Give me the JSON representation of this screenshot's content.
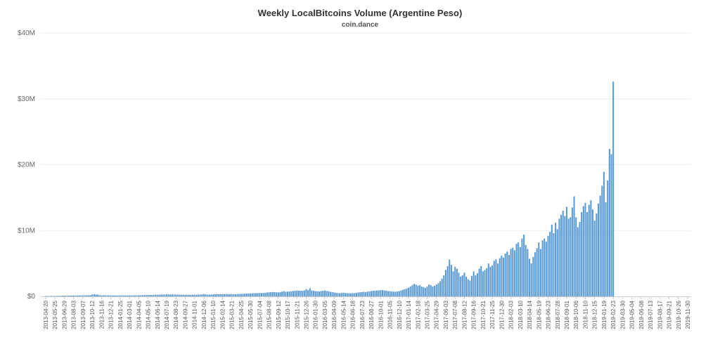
{
  "chart_data": {
    "type": "bar",
    "title": "Weekly LocalBitcoins Volume (Argentine Peso)",
    "subtitle": "coin.dance",
    "xlabel": "",
    "ylabel": "",
    "ylim": [
      0,
      40000000
    ],
    "y_ticks": [
      {
        "value": 0,
        "label": "$0"
      },
      {
        "value": 10000000,
        "label": "$10M"
      },
      {
        "value": 20000000,
        "label": "$20M"
      },
      {
        "value": 30000000,
        "label": "$30M"
      },
      {
        "value": 40000000,
        "label": "$40M"
      }
    ],
    "grid": true,
    "legend": "none",
    "color": "#5b9bd5",
    "first_week": "2013-04-20",
    "tick_labels": [
      "2013-04-20",
      "2013-05-25",
      "2013-06-29",
      "2013-08-03",
      "2013-09-07",
      "2013-10-12",
      "2013-11-16",
      "2013-12-21",
      "2014-01-25",
      "2014-03-01",
      "2014-04-05",
      "2014-05-10",
      "2014-06-14",
      "2014-07-19",
      "2014-08-23",
      "2014-09-27",
      "2014-11-01",
      "2014-12-06",
      "2015-01-10",
      "2015-02-14",
      "2015-03-21",
      "2015-04-25",
      "2015-05-30",
      "2015-07-04",
      "2015-08-08",
      "2015-09-12",
      "2015-10-17",
      "2015-11-21",
      "2015-12-26",
      "2016-01-30",
      "2016-03-05",
      "2016-04-09",
      "2016-05-14",
      "2016-06-18",
      "2016-07-23",
      "2016-08-27",
      "2016-10-01",
      "2016-11-05",
      "2016-12-10",
      "2017-01-14",
      "2017-02-18",
      "2017-03-25",
      "2017-04-29",
      "2017-06-03",
      "2017-07-08",
      "2017-08-12",
      "2017-09-16",
      "2017-10-21",
      "2017-11-25",
      "2017-12-30",
      "2018-02-03",
      "2018-03-10",
      "2018-04-14",
      "2018-05-19",
      "2018-06-23",
      "2018-07-28",
      "2018-09-01",
      "2018-10-06",
      "2018-11-10",
      "2018-12-15",
      "2019-01-19",
      "2019-02-23",
      "2019-03-30",
      "2019-05-04",
      "2019-06-08",
      "2019-07-13",
      "2019-08-17",
      "2019-09-21",
      "2019-10-26",
      "2019-11-30"
    ],
    "values": [
      50000,
      60000,
      60000,
      70000,
      60000,
      70000,
      80000,
      90000,
      80000,
      100000,
      100000,
      90000,
      110000,
      110000,
      120000,
      130000,
      120000,
      140000,
      150000,
      140000,
      160000,
      170000,
      160000,
      180000,
      190000,
      280000,
      320000,
      300000,
      260000,
      180000,
      160000,
      170000,
      180000,
      150000,
      140000,
      150000,
      150000,
      140000,
      140000,
      130000,
      140000,
      150000,
      140000,
      130000,
      140000,
      150000,
      140000,
      150000,
      160000,
      160000,
      170000,
      170000,
      180000,
      200000,
      190000,
      200000,
      210000,
      220000,
      230000,
      250000,
      240000,
      260000,
      260000,
      270000,
      280000,
      300000,
      290000,
      300000,
      290000,
      280000,
      270000,
      260000,
      250000,
      250000,
      240000,
      240000,
      240000,
      240000,
      230000,
      250000,
      270000,
      250000,
      260000,
      270000,
      300000,
      350000,
      310000,
      260000,
      260000,
      280000,
      300000,
      320000,
      350000,
      330000,
      340000,
      320000,
      340000,
      360000,
      350000,
      340000,
      320000,
      310000,
      330000,
      350000,
      370000,
      380000,
      390000,
      420000,
      430000,
      440000,
      450000,
      470000,
      480000,
      500000,
      520000,
      520000,
      500000,
      520000,
      560000,
      600000,
      620000,
      640000,
      660000,
      640000,
      620000,
      600000,
      660000,
      720000,
      800000,
      700000,
      720000,
      750000,
      780000,
      820000,
      860000,
      900000,
      880000,
      860000,
      840000,
      900000,
      1100000,
      950000,
      1250000,
      900000,
      850000,
      800000,
      780000,
      750000,
      800000,
      850000,
      900000,
      820000,
      780000,
      700000,
      650000,
      600000,
      550000,
      500000,
      480000,
      520000,
      550000,
      520000,
      500000,
      480000,
      450000,
      500000,
      500000,
      550000,
      600000,
      620000,
      650000,
      700000,
      650000,
      720000,
      750000,
      800000,
      850000,
      850000,
      900000,
      900000,
      950000,
      950000,
      900000,
      850000,
      800000,
      780000,
      750000,
      720000,
      700000,
      750000,
      800000,
      900000,
      1000000,
      1100000,
      1200000,
      1300000,
      1500000,
      1700000,
      1900000,
      1800000,
      1600000,
      1700000,
      1500000,
      1400000,
      1300000,
      1500000,
      1800000,
      1700000,
      1500000,
      1600000,
      1800000,
      2000000,
      2300000,
      2700000,
      3200000,
      4000000,
      4600000,
      5600000,
      4800000,
      3800000,
      4500000,
      4200000,
      3600000,
      3000000,
      3200000,
      3600000,
      3000000,
      2600000,
      2400000,
      3100000,
      3800000,
      3200000,
      3500000,
      4200000,
      4600000,
      3800000,
      4000000,
      4300000,
      5000000,
      4500000,
      4700000,
      5400000,
      5600000,
      5000000,
      5800000,
      6200000,
      5900000,
      6500000,
      6800000,
      6300000,
      7200000,
      7400000,
      7000000,
      8000000,
      8200000,
      7500000,
      8800000,
      9400000,
      7800000,
      7200000,
      5700000,
      5000000,
      6000000,
      6700000,
      7300000,
      8200000,
      7200000,
      8500000,
      8800000,
      8300000,
      9200000,
      9800000,
      10900000,
      9600000,
      11200000,
      10200000,
      11800000,
      12400000,
      13000000,
      12200000,
      13600000,
      11800000,
      12000000,
      13500000,
      15200000,
      12000000,
      10500000,
      11300000,
      12800000,
      13700000,
      14200000,
      12800000,
      13900000,
      14600000,
      13200000,
      11500000,
      12600000,
      14100000,
      15300000,
      16800000,
      18900000,
      14300000,
      17600000,
      22400000,
      21600000,
      32600000
    ],
    "x_axis": "weekly dates from 2013-04-20 to 2019-11-30"
  }
}
